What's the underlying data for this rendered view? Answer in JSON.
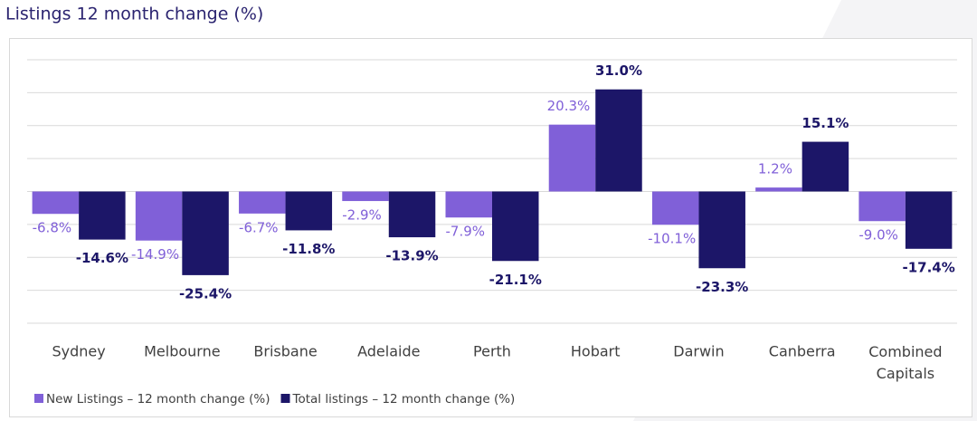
{
  "chart_data": {
    "type": "bar",
    "title": "Listings 12 month change (%)",
    "categories": [
      "Sydney",
      "Melbourne",
      "Brisbane",
      "Adelaide",
      "Perth",
      "Hobart",
      "Darwin",
      "Canberra",
      "Combined Capitals"
    ],
    "series": [
      {
        "name": "New Listings – 12 month change (%)",
        "color": "#8060d8",
        "values": [
          -6.8,
          -14.9,
          -6.7,
          -2.9,
          -7.9,
          20.3,
          -10.1,
          1.2,
          -9.0
        ],
        "value_labels": [
          "-6.8%",
          "-14.9%",
          "-6.7%",
          "-2.9%",
          "-7.9%",
          "20.3%",
          "-10.1%",
          "1.2%",
          "-9.0%"
        ]
      },
      {
        "name": "Total listings – 12 month change (%)",
        "color": "#1c1668",
        "values": [
          -14.6,
          -25.4,
          -11.8,
          -13.9,
          -21.1,
          31.0,
          -23.3,
          15.1,
          -17.4
        ],
        "value_labels": [
          "-14.6%",
          "-25.4%",
          "-11.8%",
          "-13.9%",
          "-21.1%",
          "31.0%",
          "-23.3%",
          "15.1%",
          "-17.4%"
        ]
      }
    ],
    "ylim": [
      -40,
      40
    ],
    "yticks": [
      -40,
      -30,
      -20,
      -10,
      0,
      10,
      20,
      30,
      40
    ],
    "grid": true,
    "legend": "bottom-left"
  }
}
